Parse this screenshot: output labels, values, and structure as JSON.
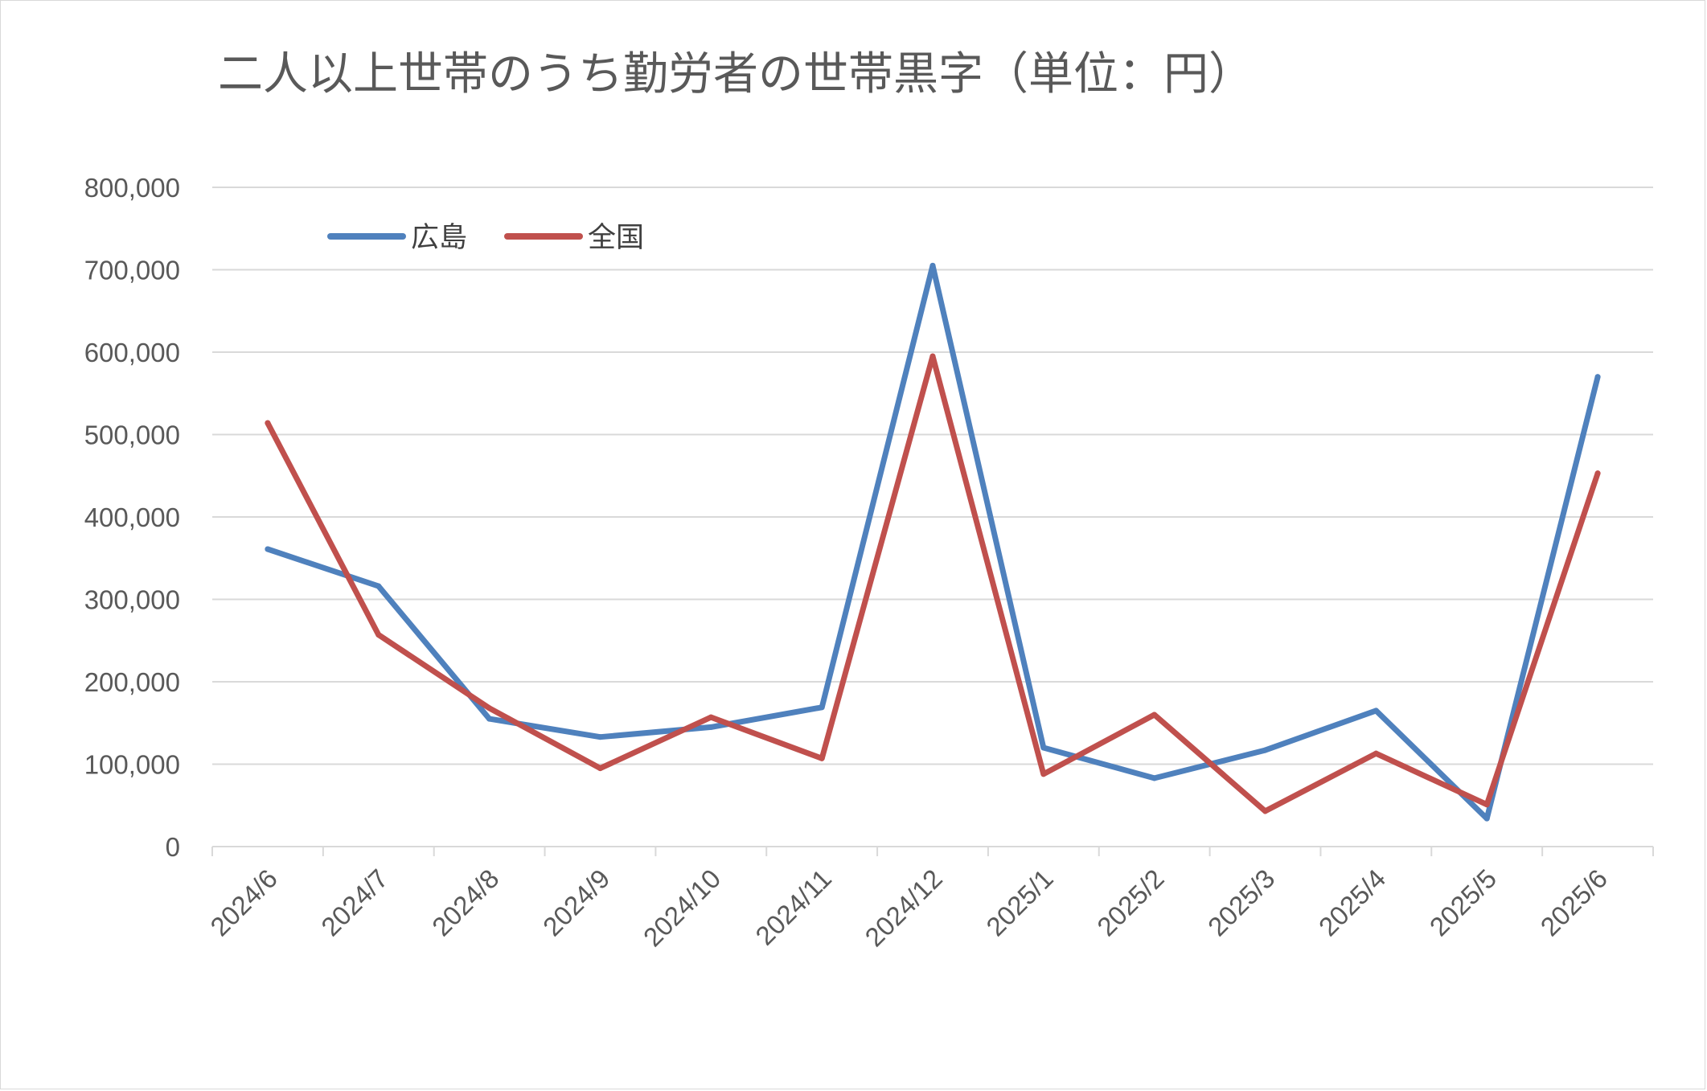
{
  "chart_data": {
    "type": "line",
    "title": "二人以上世帯のうち勤労者の世帯黒字（単位：円）",
    "categories": [
      "2024/6",
      "2024/7",
      "2024/8",
      "2024/9",
      "2024/10",
      "2024/11",
      "2024/12",
      "2025/1",
      "2025/2",
      "2025/3",
      "2025/4",
      "2025/5",
      "2025/6"
    ],
    "series": [
      {
        "name": "広島",
        "color": "#4f81bd",
        "values": [
          361000,
          316000,
          155000,
          133000,
          145000,
          169000,
          705000,
          120000,
          83000,
          117000,
          165000,
          34000,
          570000
        ]
      },
      {
        "name": "全国",
        "color": "#c0504d",
        "values": [
          514000,
          257000,
          168000,
          95000,
          157000,
          107000,
          595000,
          88000,
          160000,
          43000,
          113000,
          51000,
          453000
        ]
      }
    ],
    "ylim": [
      0,
      800000
    ],
    "yticks": [
      "0",
      "100,000",
      "200,000",
      "300,000",
      "400,000",
      "500,000",
      "600,000",
      "700,000",
      "800,000"
    ],
    "ytick_values": [
      0,
      100000,
      200000,
      300000,
      400000,
      500000,
      600000,
      700000,
      800000
    ],
    "grid": true,
    "legend_position": "top-left"
  }
}
